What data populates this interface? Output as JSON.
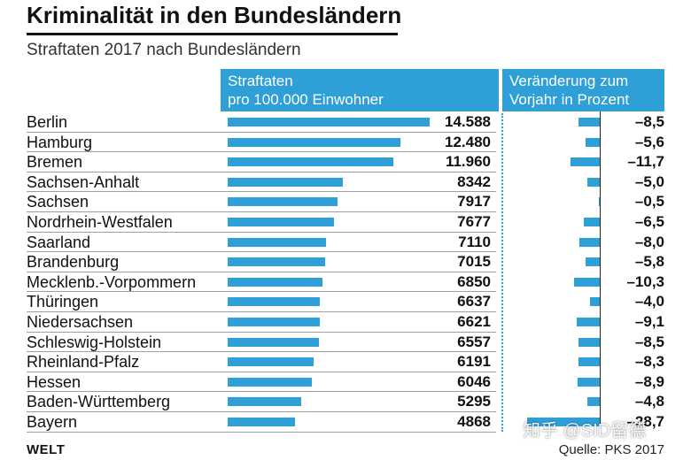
{
  "header": {
    "title": "Kriminalität in den Bundesländern",
    "subtitle": "Straftaten 2017 nach Bundesländern"
  },
  "columns": {
    "rate_line1": "Straftaten",
    "rate_line2": "pro 100.000 Einwohner",
    "change_line1": "Veränderung zum",
    "change_line2": "Vorjahr in Prozent"
  },
  "footer": {
    "logo": "WELT",
    "source": "Quelle: PKS 2017",
    "watermark": "知乎 @SID留德"
  },
  "colors": {
    "accent": "#2f9fd8",
    "text": "#111111"
  },
  "chart_data": {
    "type": "bar",
    "title": "Kriminalität in den Bundesländern",
    "subtitle": "Straftaten 2017 nach Bundesländern",
    "categories": [
      "Berlin",
      "Hamburg",
      "Bremen",
      "Sachsen-Anhalt",
      "Sachsen",
      "Nordrhein-Westfalen",
      "Saarland",
      "Brandenburg",
      "Mecklenb.-Vorpommern",
      "Thüringen",
      "Niedersachsen",
      "Schleswig-Holstein",
      "Rheinland-Pfalz",
      "Hessen",
      "Baden-Württemberg",
      "Bayern"
    ],
    "series": [
      {
        "name": "Straftaten pro 100.000 Einwohner",
        "values": [
          14588,
          12480,
          11960,
          8342,
          7917,
          7677,
          7110,
          7015,
          6850,
          6637,
          6621,
          6557,
          6191,
          6046,
          5295,
          4868
        ],
        "labels": [
          "14.588",
          "12.480",
          "11.960",
          "8342",
          "7917",
          "7677",
          "7110",
          "7015",
          "6850",
          "6637",
          "6621",
          "6557",
          "6191",
          "6046",
          "5295",
          "4868"
        ]
      },
      {
        "name": "Veränderung zum Vorjahr in Prozent",
        "values": [
          -8.5,
          -5.6,
          -11.7,
          -5.0,
          -0.5,
          -6.5,
          -8.0,
          -5.8,
          -10.3,
          -4.0,
          -9.1,
          -8.5,
          -8.3,
          -8.9,
          -4.8,
          -28.7
        ],
        "labels": [
          "–8,5",
          "–5,6",
          "–11,7",
          "–5,0",
          "–0,5",
          "–6,5",
          "–8,0",
          "–5,8",
          "–10,3",
          "–4,0",
          "–9,1",
          "–8,5",
          "–8,3",
          "–8,9",
          "–4,8",
          "–28,7"
        ]
      }
    ],
    "xlim_rate": [
      0,
      14588
    ],
    "xlim_change": [
      -28.7,
      0
    ],
    "source": "Quelle: PKS 2017"
  }
}
